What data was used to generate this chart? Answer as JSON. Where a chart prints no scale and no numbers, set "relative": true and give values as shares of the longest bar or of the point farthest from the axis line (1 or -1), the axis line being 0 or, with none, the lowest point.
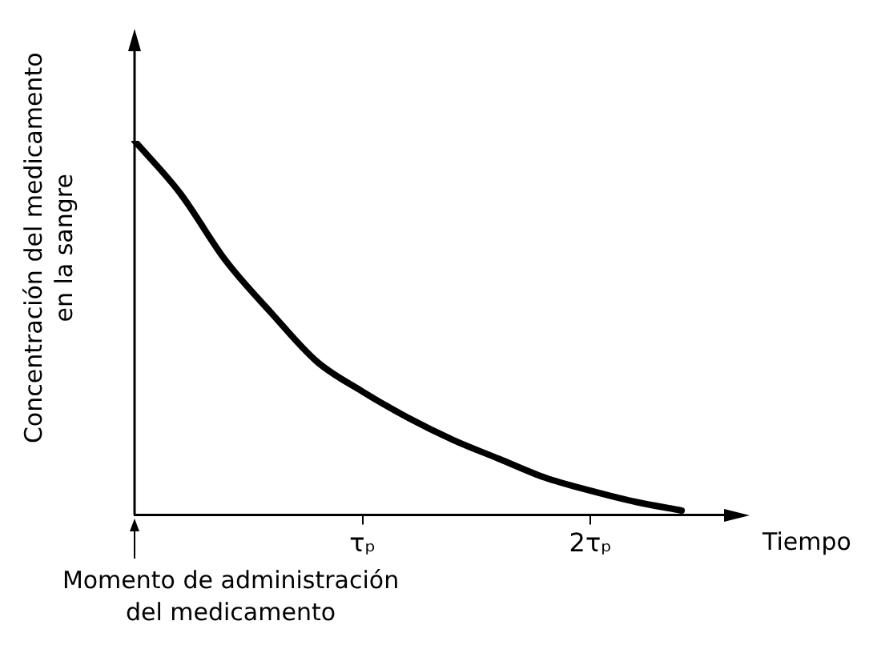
{
  "chart_data": {
    "type": "line",
    "relative": true,
    "xlabel": "Tiempo",
    "ylabel": "Concentración del medicamento en la sangre",
    "annotations": [
      "Momento de administración del medicamento"
    ],
    "categories": [
      null,
      null,
      null,
      null,
      null,
      "τₚ",
      null,
      null,
      null,
      null,
      "2τₚ",
      null,
      null,
      null
    ],
    "series": [
      {
        "color": "#000000",
        "values": [
          1,
          0.86,
          0.68,
          0.54,
          0.41,
          0.33,
          0.26,
          0.2,
          0.15,
          0.1,
          0.065,
          0.035,
          0.012,
          null
        ]
      }
    ],
    "grid": false,
    "legend": false,
    "marker": "none",
    "line_style": "solid"
  }
}
